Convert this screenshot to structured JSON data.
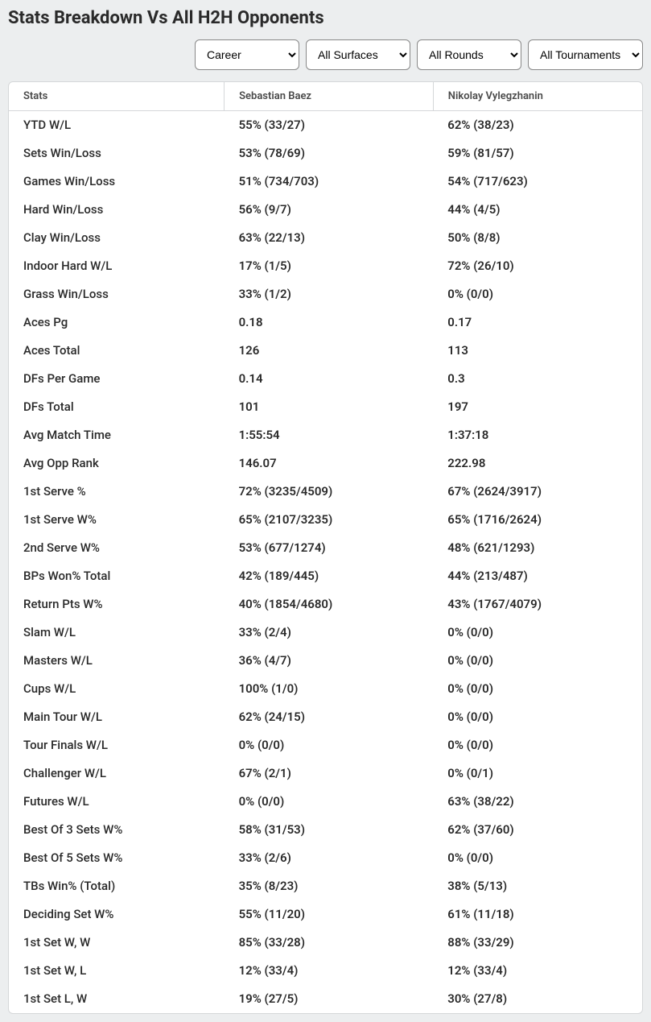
{
  "title": "Stats Breakdown Vs All H2H Opponents",
  "filters": {
    "period": {
      "selected": "Career",
      "options": [
        "Career"
      ]
    },
    "surface": {
      "selected": "All Surfaces",
      "options": [
        "All Surfaces"
      ]
    },
    "round": {
      "selected": "All Rounds",
      "options": [
        "All Rounds"
      ]
    },
    "tournament": {
      "selected": "All Tournaments",
      "options": [
        "All Tournaments"
      ]
    }
  },
  "columns": [
    "Stats",
    "Sebastian Baez",
    "Nikolay Vylegzhanin"
  ],
  "rows": [
    [
      "YTD W/L",
      "55% (33/27)",
      "62% (38/23)"
    ],
    [
      "Sets Win/Loss",
      "53% (78/69)",
      "59% (81/57)"
    ],
    [
      "Games Win/Loss",
      "51% (734/703)",
      "54% (717/623)"
    ],
    [
      "Hard Win/Loss",
      "56% (9/7)",
      "44% (4/5)"
    ],
    [
      "Clay Win/Loss",
      "63% (22/13)",
      "50% (8/8)"
    ],
    [
      "Indoor Hard W/L",
      "17% (1/5)",
      "72% (26/10)"
    ],
    [
      "Grass Win/Loss",
      "33% (1/2)",
      "0% (0/0)"
    ],
    [
      "Aces Pg",
      "0.18",
      "0.17"
    ],
    [
      "Aces Total",
      "126",
      "113"
    ],
    [
      "DFs Per Game",
      "0.14",
      "0.3"
    ],
    [
      "DFs Total",
      "101",
      "197"
    ],
    [
      "Avg Match Time",
      "1:55:54",
      "1:37:18"
    ],
    [
      "Avg Opp Rank",
      "146.07",
      "222.98"
    ],
    [
      "1st Serve %",
      "72% (3235/4509)",
      "67% (2624/3917)"
    ],
    [
      "1st Serve W%",
      "65% (2107/3235)",
      "65% (1716/2624)"
    ],
    [
      "2nd Serve W%",
      "53% (677/1274)",
      "48% (621/1293)"
    ],
    [
      "BPs Won% Total",
      "42% (189/445)",
      "44% (213/487)"
    ],
    [
      "Return Pts W%",
      "40% (1854/4680)",
      "43% (1767/4079)"
    ],
    [
      "Slam W/L",
      "33% (2/4)",
      "0% (0/0)"
    ],
    [
      "Masters W/L",
      "36% (4/7)",
      "0% (0/0)"
    ],
    [
      "Cups W/L",
      "100% (1/0)",
      "0% (0/0)"
    ],
    [
      "Main Tour W/L",
      "62% (24/15)",
      "0% (0/0)"
    ],
    [
      "Tour Finals W/L",
      "0% (0/0)",
      "0% (0/0)"
    ],
    [
      "Challenger W/L",
      "67% (2/1)",
      "0% (0/1)"
    ],
    [
      "Futures W/L",
      "0% (0/0)",
      "63% (38/22)"
    ],
    [
      "Best Of 3 Sets W%",
      "58% (31/53)",
      "62% (37/60)"
    ],
    [
      "Best Of 5 Sets W%",
      "33% (2/6)",
      "0% (0/0)"
    ],
    [
      "TBs Win% (Total)",
      "35% (8/23)",
      "38% (5/13)"
    ],
    [
      "Deciding Set W%",
      "55% (11/20)",
      "61% (11/18)"
    ],
    [
      "1st Set W, W",
      "85% (33/28)",
      "88% (33/29)"
    ],
    [
      "1st Set W, L",
      "12% (33/4)",
      "12% (33/4)"
    ],
    [
      "1st Set L, W",
      "19% (27/5)",
      "30% (27/8)"
    ]
  ]
}
